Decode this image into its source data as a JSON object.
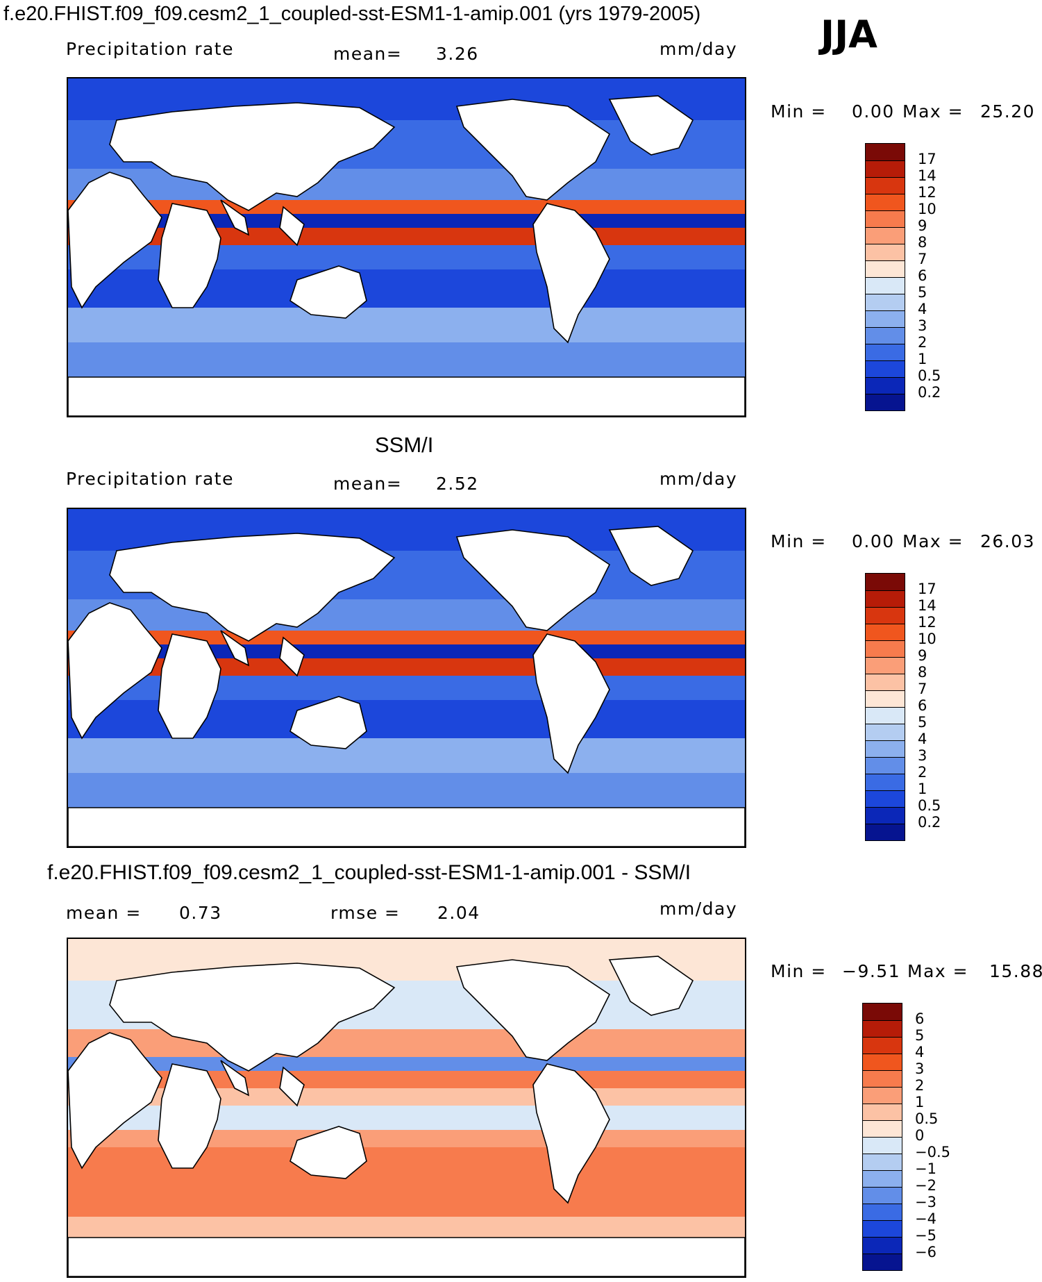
{
  "header": {
    "title": "f.e20.FHIST.f09_f09.cesm2_1_coupled-sst-ESM1-1-amip.001 (yrs 1979-2005)",
    "season": "JJA"
  },
  "panels": [
    {
      "title": "",
      "field_label": "Precipitation  rate",
      "stat1_label": "mean=",
      "stat1_value": "3.26",
      "stat2_label": "",
      "stat2_value": "",
      "units": "mm/day",
      "min_label": "Min  =",
      "min_value": "0.00",
      "max_label": "Max  =",
      "max_value": "25.20",
      "colorbar": [
        "17",
        "14",
        "12",
        "10",
        "9",
        "8",
        "7",
        "6",
        "5",
        "4",
        "3",
        "2",
        "1",
        "0.5",
        "0.2"
      ],
      "colors": [
        "#7a0a06",
        "#b61c08",
        "#d8360f",
        "#f0561e",
        "#f77b4d",
        "#fa9e78",
        "#fcc2a5",
        "#fde6d6",
        "#d9e8f7",
        "#b4cdf1",
        "#8cb0ee",
        "#628ee8",
        "#3a6be4",
        "#1c47db",
        "#0b27b8",
        "#061490"
      ]
    },
    {
      "title": "SSM/I",
      "field_label": "Precipitation  rate",
      "stat1_label": "mean=",
      "stat1_value": "2.52",
      "stat2_label": "",
      "stat2_value": "",
      "units": "mm/day",
      "min_label": "Min  =",
      "min_value": "0.00",
      "max_label": "Max  =",
      "max_value": "26.03",
      "colorbar": [
        "17",
        "14",
        "12",
        "10",
        "9",
        "8",
        "7",
        "6",
        "5",
        "4",
        "3",
        "2",
        "1",
        "0.5",
        "0.2"
      ],
      "colors": [
        "#7a0a06",
        "#b61c08",
        "#d8360f",
        "#f0561e",
        "#f77b4d",
        "#fa9e78",
        "#fcc2a5",
        "#fde6d6",
        "#d9e8f7",
        "#b4cdf1",
        "#8cb0ee",
        "#628ee8",
        "#3a6be4",
        "#1c47db",
        "#0b27b8",
        "#061490"
      ]
    },
    {
      "title": "f.e20.FHIST.f09_f09.cesm2_1_coupled-sst-ESM1-1-amip.001 - SSM/I",
      "field_label": "",
      "stat1_label": "mean =",
      "stat1_value": "0.73",
      "stat2_label": "rmse =",
      "stat2_value": "2.04",
      "units": "mm/day",
      "min_label": "Min  =",
      "min_value": "−9.51",
      "max_label": "Max  =",
      "max_value": "15.88",
      "colorbar": [
        "6",
        "5",
        "4",
        "3",
        "2",
        "1",
        "0.5",
        "0",
        "−0.5",
        "−1",
        "−2",
        "−3",
        "−4",
        "−5",
        "−6"
      ],
      "colors": [
        "#7a0a06",
        "#b61c08",
        "#d8360f",
        "#f0561e",
        "#f77b4d",
        "#fa9e78",
        "#fcc2a5",
        "#fde6d6",
        "#d9e8f7",
        "#b4cdf1",
        "#8cb0ee",
        "#628ee8",
        "#3a6be4",
        "#1c47db",
        "#0b27b8",
        "#061490"
      ]
    }
  ]
}
